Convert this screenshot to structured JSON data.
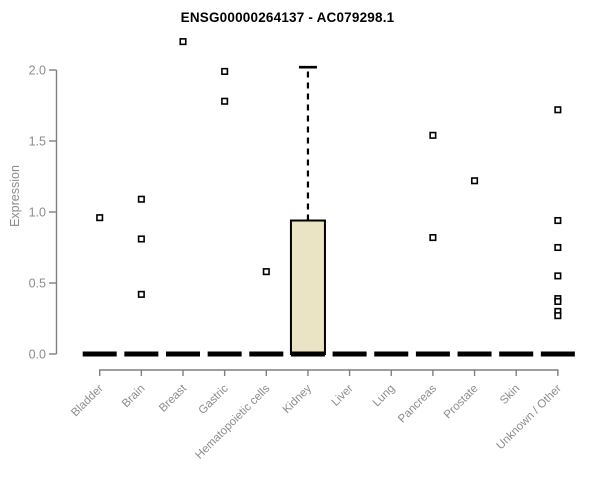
{
  "header": {
    "title": "ENSG00000264137 - AC079298.1"
  },
  "colors": {
    "background": "#ffffff",
    "title_text": "#000000",
    "axis_line": "#7f7f7f",
    "axis_text": "#8c8c8c",
    "box_fill": "#eae3c4",
    "box_border": "#000000",
    "zero_bar": "#000000",
    "outlier_stroke": "#000000",
    "outlier_fill": "#ffffff"
  },
  "chart_data": {
    "type": "boxplot",
    "title": "ENSG00000264137 - AC079298.1",
    "xlabel": "",
    "ylabel": "Expression",
    "ylim": [
      0,
      2.2
    ],
    "yticks": [
      0.0,
      0.5,
      1.0,
      1.5,
      2.0
    ],
    "ytick_labels": [
      "0.0",
      "0.5",
      "1.0",
      "1.5",
      "2.0"
    ],
    "grid": false,
    "legend": "none",
    "marker": "open-square",
    "categories": [
      "Bladder",
      "Brain",
      "Breast",
      "Gastric",
      "Hematopoietic cells",
      "Kidney",
      "Liver",
      "Lung",
      "Pancreas",
      "Prostate",
      "Skin",
      "Unknown / Other"
    ],
    "series": [
      {
        "name": "Bladder",
        "q1": 0,
        "median": 0,
        "q3": 0,
        "whisker_low": 0,
        "whisker_high": 0,
        "outliers": [
          0.96
        ]
      },
      {
        "name": "Brain",
        "q1": 0,
        "median": 0,
        "q3": 0,
        "whisker_low": 0,
        "whisker_high": 0,
        "outliers": [
          1.09,
          0.81,
          0.42
        ]
      },
      {
        "name": "Breast",
        "q1": 0,
        "median": 0,
        "q3": 0,
        "whisker_low": 0,
        "whisker_high": 0,
        "outliers": [
          2.2
        ]
      },
      {
        "name": "Gastric",
        "q1": 0,
        "median": 0,
        "q3": 0,
        "whisker_low": 0,
        "whisker_high": 0,
        "outliers": [
          1.99,
          1.78
        ]
      },
      {
        "name": "Hematopoietic cells",
        "q1": 0,
        "median": 0,
        "q3": 0,
        "whisker_low": 0,
        "whisker_high": 0,
        "outliers": [
          0.58
        ]
      },
      {
        "name": "Kidney",
        "q1": 0,
        "median": 0,
        "q3": 0.94,
        "whisker_low": 0,
        "whisker_high": 2.02,
        "outliers": []
      },
      {
        "name": "Liver",
        "q1": 0,
        "median": 0,
        "q3": 0,
        "whisker_low": 0,
        "whisker_high": 0,
        "outliers": []
      },
      {
        "name": "Lung",
        "q1": 0,
        "median": 0,
        "q3": 0,
        "whisker_low": 0,
        "whisker_high": 0,
        "outliers": []
      },
      {
        "name": "Pancreas",
        "q1": 0,
        "median": 0,
        "q3": 0,
        "whisker_low": 0,
        "whisker_high": 0,
        "outliers": [
          1.54,
          0.82
        ]
      },
      {
        "name": "Prostate",
        "q1": 0,
        "median": 0,
        "q3": 0,
        "whisker_low": 0,
        "whisker_high": 0,
        "outliers": [
          1.22
        ]
      },
      {
        "name": "Skin",
        "q1": 0,
        "median": 0,
        "q3": 0,
        "whisker_low": 0,
        "whisker_high": 0,
        "outliers": []
      },
      {
        "name": "Unknown / Other",
        "q1": 0,
        "median": 0,
        "q3": 0,
        "whisker_low": 0,
        "whisker_high": 0,
        "outliers": [
          1.72,
          0.94,
          0.75,
          0.55,
          0.39,
          0.37,
          0.3,
          0.27
        ]
      }
    ]
  }
}
